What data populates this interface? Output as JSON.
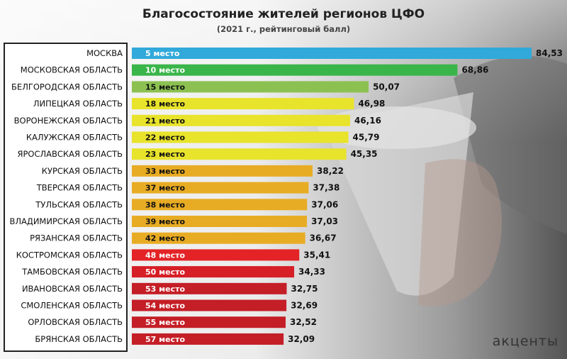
{
  "title": "Благосостояние жителей регионов ЦФО",
  "subtitle": "(2021 г., рейтинговый балл)",
  "brand": "акценты",
  "chart_data": {
    "type": "bar",
    "orientation": "horizontal",
    "title": "Благосостояние жителей регионов ЦФО",
    "subtitle": "(2021 г., рейтинговый балл)",
    "xlim": [
      0,
      84.53
    ],
    "categories": [
      "МОСКВА",
      "МОСКОВСКАЯ ОБЛАСТЬ",
      "БЕЛГОРОДСКАЯ ОБЛАСТЬ",
      "ЛИПЕЦКАЯ ОБЛАСТЬ",
      "ВОРОНЕЖСКАЯ ОБЛАСТЬ",
      "КАЛУЖСКАЯ ОБЛАСТЬ",
      "ЯРОСЛАВСКАЯ ОБЛАСТЬ",
      "КУРСКАЯ ОБЛАСТЬ",
      "ТВЕРСКАЯ ОБЛАСТЬ",
      "ТУЛЬСКАЯ ОБЛАСТЬ",
      "ВЛАДИМИРСКАЯ ОБЛАСТЬ",
      "РЯЗАНСКАЯ ОБЛАСТЬ",
      "КОСТРОМСКАЯ ОБЛАСТЬ",
      "ТАМБОВСКАЯ ОБЛАСТЬ",
      "ИВАНОВСКАЯ ОБЛАСТЬ",
      "СМОЛЕНСКАЯ ОБЛАСТЬ",
      "ОРЛОВСКАЯ ОБЛАСТЬ",
      "БРЯНСКАЯ ОБЛАСТЬ"
    ],
    "values": [
      84.53,
      68.86,
      50.07,
      46.98,
      46.16,
      45.79,
      45.35,
      38.22,
      37.38,
      37.06,
      37.03,
      36.67,
      35.41,
      34.33,
      32.75,
      32.69,
      32.52,
      32.09
    ],
    "value_labels": [
      "84,53",
      "68,86",
      "50,07",
      "46,98",
      "46,16",
      "45,79",
      "45,35",
      "38,22",
      "37,38",
      "37,06",
      "37,03",
      "36,67",
      "35,41",
      "34,33",
      "32,75",
      "32,69",
      "32,52",
      "32,09"
    ],
    "rank_labels": [
      "5 место",
      "10 место",
      "15 место",
      "18 место",
      "21 место",
      "22 место",
      "23 место",
      "33 место",
      "37 место",
      "38 место",
      "39 место",
      "42 место",
      "48 место",
      "50 место",
      "53 место",
      "54 место",
      "55 место",
      "57 место"
    ],
    "bar_colors": [
      "#31a9da",
      "#3ab54a",
      "#8cc152",
      "#e8e32b",
      "#e8e32b",
      "#e8e32b",
      "#e8e32b",
      "#e8ac24",
      "#e8ac24",
      "#e8ac24",
      "#e8ac24",
      "#e8ac24",
      "#e32326",
      "#d61f26",
      "#c41e26",
      "#c41e26",
      "#c41e26",
      "#c41e26"
    ],
    "rank_text_colors": [
      "#ffffff",
      "#ffffff",
      "#111111",
      "#111111",
      "#111111",
      "#111111",
      "#111111",
      "#111111",
      "#111111",
      "#111111",
      "#111111",
      "#111111",
      "#ffffff",
      "#ffffff",
      "#ffffff",
      "#ffffff",
      "#ffffff",
      "#ffffff"
    ]
  }
}
